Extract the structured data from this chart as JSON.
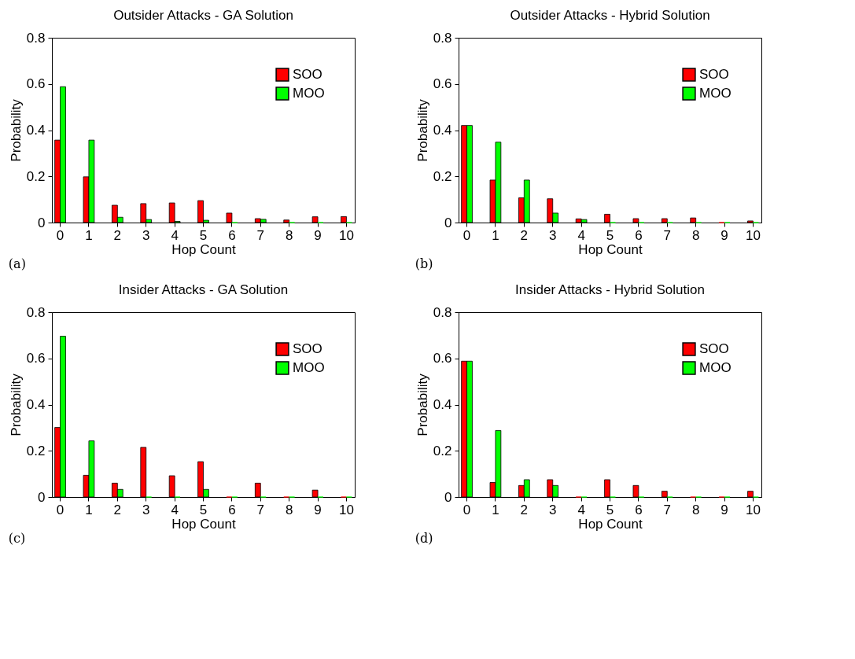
{
  "chart_data": [
    {
      "type": "bar",
      "title": "Outsider Attacks - GA Solution",
      "xlabel": "Hop Count",
      "ylabel": "Probability",
      "annotations": [
        "(a)"
      ],
      "categories": [
        "0",
        "1",
        "2",
        "3",
        "4",
        "5",
        "6",
        "7",
        "8",
        "9",
        "10"
      ],
      "ylim": [
        0,
        0.8
      ],
      "yticks": [
        0,
        0.2,
        0.4,
        0.6,
        0.8
      ],
      "legend": "top right",
      "grid": false,
      "series": [
        {
          "name": "SOO",
          "color": "#ff0000",
          "values": [
            0.357,
            0.198,
            0.075,
            0.082,
            0.085,
            0.095,
            0.041,
            0.017,
            0.011,
            0.025,
            0.026
          ]
        },
        {
          "name": "MOO",
          "color": "#00ff00",
          "values": [
            0.588,
            0.357,
            0.023,
            0.013,
            0.005,
            0.01,
            0,
            0.014,
            0,
            0,
            0
          ]
        }
      ]
    },
    {
      "type": "bar",
      "title": "Outsider Attacks - Hybrid Solution",
      "xlabel": "Hop Count",
      "ylabel": "Probability",
      "annotations": [
        "(b)"
      ],
      "categories": [
        "0",
        "1",
        "2",
        "3",
        "4",
        "5",
        "6",
        "7",
        "8",
        "9",
        "10"
      ],
      "ylim": [
        0,
        0.8
      ],
      "yticks": [
        0,
        0.2,
        0.4,
        0.6,
        0.8
      ],
      "legend": "top right",
      "grid": false,
      "series": [
        {
          "name": "SOO",
          "color": "#ff0000",
          "values": [
            0.42,
            0.184,
            0.107,
            0.103,
            0.016,
            0.036,
            0.017,
            0.017,
            0.02,
            0,
            0.007
          ]
        },
        {
          "name": "MOO",
          "color": "#00ff00",
          "values": [
            0.42,
            0.348,
            0.184,
            0.041,
            0.013,
            0,
            0,
            0,
            0,
            0,
            0
          ]
        }
      ]
    },
    {
      "type": "bar",
      "title": "Insider Attacks - GA Solution",
      "xlabel": "Hop Count",
      "ylabel": "Probability",
      "annotations": [
        "(c)"
      ],
      "categories": [
        "0",
        "1",
        "2",
        "3",
        "4",
        "5",
        "6",
        "7",
        "8",
        "9",
        "10"
      ],
      "ylim": [
        0,
        0.8
      ],
      "yticks": [
        0,
        0.2,
        0.4,
        0.6,
        0.8
      ],
      "legend": "top right",
      "grid": false,
      "series": [
        {
          "name": "SOO",
          "color": "#ff0000",
          "values": [
            0.301,
            0.094,
            0.06,
            0.215,
            0.092,
            0.153,
            0,
            0.06,
            0,
            0.03,
            0
          ]
        },
        {
          "name": "MOO",
          "color": "#00ff00",
          "values": [
            0.696,
            0.243,
            0.033,
            0,
            0,
            0.033,
            0,
            0,
            0,
            0,
            0
          ]
        }
      ]
    },
    {
      "type": "bar",
      "title": "Insider Attacks - Hybrid Solution",
      "xlabel": "Hop Count",
      "ylabel": "Probability",
      "annotations": [
        "(d)"
      ],
      "categories": [
        "0",
        "1",
        "2",
        "3",
        "4",
        "5",
        "6",
        "7",
        "8",
        "9",
        "10"
      ],
      "ylim": [
        0,
        0.8
      ],
      "yticks": [
        0,
        0.2,
        0.4,
        0.6,
        0.8
      ],
      "legend": "top right",
      "grid": false,
      "series": [
        {
          "name": "SOO",
          "color": "#ff0000",
          "values": [
            0.588,
            0.063,
            0.05,
            0.075,
            0,
            0.075,
            0.05,
            0.025,
            0,
            0,
            0.025
          ]
        },
        {
          "name": "MOO",
          "color": "#00ff00",
          "values": [
            0.588,
            0.288,
            0.075,
            0.05,
            0,
            0,
            0,
            0,
            0,
            0,
            0
          ]
        }
      ]
    }
  ]
}
